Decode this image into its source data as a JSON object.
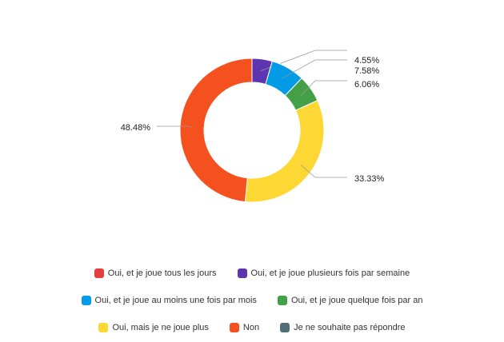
{
  "chart_data": {
    "type": "pie",
    "donut": true,
    "categories": [
      "Oui, et je joue tous les jours",
      "Oui, et je joue plusieurs fois par semaine",
      "Oui, et je joue au moins une fois par mois",
      "Oui, et je joue quelque fois par an",
      "Oui, mais je ne joue plus",
      "Non",
      "Je ne souhaite pas répondre"
    ],
    "values": [
      0,
      4.55,
      7.58,
      6.06,
      33.33,
      48.48,
      0
    ],
    "labels": [
      "",
      "4.55%",
      "7.58%",
      "6.06%",
      "33.33%",
      "48.48%",
      ""
    ],
    "colors": [
      "#E53E3E",
      "#5E35B1",
      "#039BE5",
      "#43A047",
      "#FDD835",
      "#F4511E",
      "#546E7A"
    ],
    "legend_position": "bottom"
  }
}
